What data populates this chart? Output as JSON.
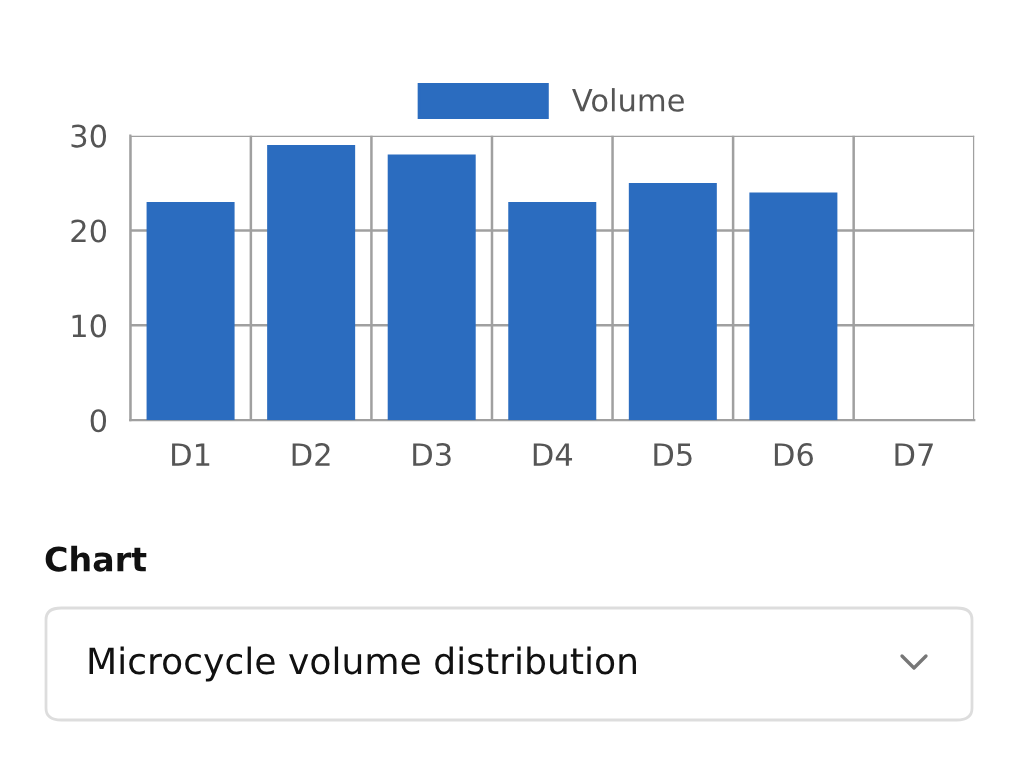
{
  "chart_data": {
    "type": "bar",
    "categories": [
      "D1",
      "D2",
      "D3",
      "D4",
      "D5",
      "D6",
      "D7"
    ],
    "series": [
      {
        "name": "Volume",
        "color": "#2b6cbf",
        "values": [
          23,
          29,
          28,
          23,
          25,
          24,
          null
        ]
      }
    ],
    "ylim": [
      0,
      30
    ],
    "yticks": [
      0,
      10,
      20,
      30
    ],
    "grid": true,
    "legend": "top",
    "annotations": [
      "Chart",
      "Microcycle volume distribution"
    ]
  }
}
